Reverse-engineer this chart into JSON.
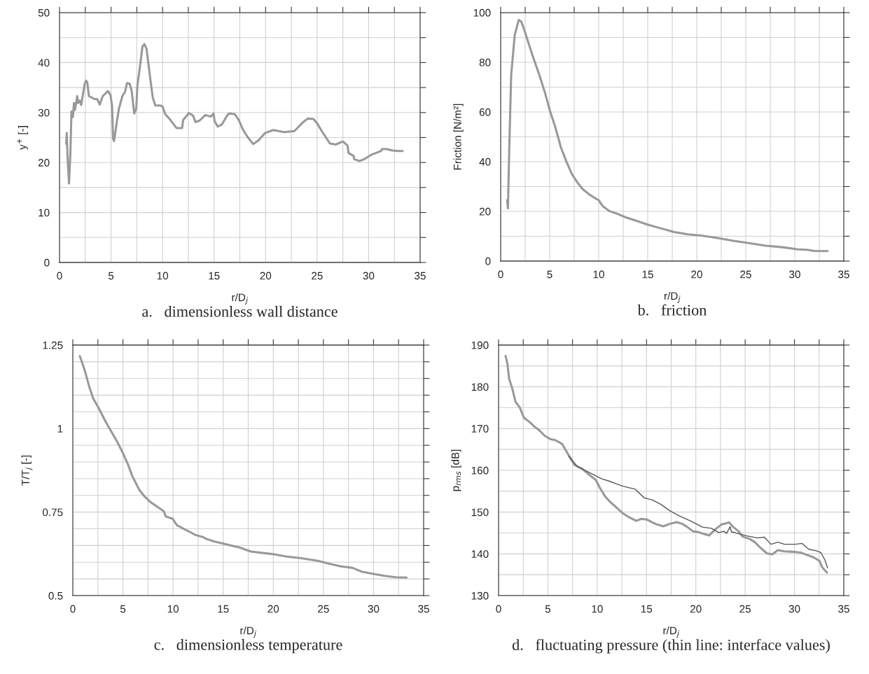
{
  "chart_data": [
    {
      "type": "line",
      "title": "a.   dimensionless wall distance",
      "xlabel": "r/D$_{j}$",
      "ylabel": "y$^{+}$ [-]",
      "xlim": [
        0,
        35
      ],
      "ylim": [
        0,
        50
      ],
      "xticks": [
        0,
        {
          "value": 2.5,
          "label": null
        },
        5,
        {
          "value": 7.5,
          "label": null
        },
        10,
        {
          "value": 12.5,
          "label": null
        },
        15,
        {
          "value": 17.5,
          "label": null
        },
        20,
        {
          "value": 22.5,
          "label": null
        },
        25,
        {
          "value": 27.5,
          "label": null
        },
        30,
        {
          "value": 32.5,
          "label": null
        },
        35
      ],
      "yticks": [
        0,
        {
          "value": 5,
          "label": null
        },
        10,
        {
          "value": 15,
          "label": null
        },
        20,
        {
          "value": 25,
          "label": null
        },
        30,
        {
          "value": 35,
          "label": null
        },
        40,
        {
          "value": 45,
          "label": null
        },
        50
      ],
      "grid": true,
      "series": [
        {
          "color": "#999999",
          "x": [
            0.65,
            0.7,
            0.78,
            0.92,
            1.05,
            1.16,
            1.3,
            1.4,
            1.5,
            1.72,
            1.8,
            1.96,
            2.1,
            2.45,
            2.58,
            2.7,
            2.85,
            3.4,
            3.65,
            3.9,
            4.2,
            4.7,
            4.95,
            5.1,
            5.2,
            5.3,
            5.55,
            5.77,
            6.1,
            6.35,
            6.55,
            6.8,
            7.0,
            7.25,
            7.45,
            7.55,
            7.85,
            8.05,
            8.24,
            8.45,
            8.8,
            9.05,
            9.3,
            9.8,
            10.0,
            10.25,
            10.65,
            11.35,
            11.9,
            12.0,
            12.55,
            12.95,
            13.2,
            13.6,
            14.15,
            14.7,
            14.95,
            15.05,
            15.35,
            15.75,
            16.3,
            16.45,
            17.0,
            17.4,
            17.8,
            18.25,
            18.8,
            19.3,
            19.95,
            20.75,
            21.8,
            22.8,
            23.6,
            24.1,
            24.65,
            25.05,
            25.45,
            26.25,
            26.8,
            27.5,
            27.95,
            28.05,
            28.55,
            28.6,
            29.1,
            29.6,
            30.3,
            30.7,
            31.2,
            31.3,
            31.75,
            32.3,
            32.85,
            33.3
          ],
          "values": [
            23.7,
            25.9,
            21.1,
            15.8,
            21.6,
            30.2,
            29.1,
            31.9,
            30.5,
            33.3,
            31.9,
            32.4,
            31.5,
            35.8,
            36.4,
            36.0,
            33.3,
            32.7,
            32.7,
            31.6,
            33.3,
            34.3,
            33.5,
            31.3,
            24.7,
            24.3,
            28.0,
            30.8,
            33.3,
            34.1,
            35.9,
            35.8,
            34.4,
            29.8,
            30.8,
            35.2,
            39.9,
            43.2,
            43.7,
            42.7,
            36.9,
            33.0,
            31.4,
            31.4,
            31.2,
            29.7,
            28.8,
            26.9,
            26.9,
            28.5,
            29.9,
            29.4,
            28.1,
            28.4,
            29.5,
            29.2,
            29.8,
            28.3,
            27.2,
            27.6,
            29.5,
            29.8,
            29.7,
            28.5,
            26.6,
            25.1,
            23.7,
            24.4,
            25.9,
            26.5,
            26.1,
            26.3,
            28.0,
            28.8,
            28.7,
            27.7,
            26.3,
            23.8,
            23.6,
            24.2,
            23.4,
            21.9,
            21.3,
            20.7,
            20.3,
            20.7,
            21.6,
            21.9,
            22.3,
            22.7,
            22.7,
            22.4,
            22.3,
            22.3
          ]
        }
      ]
    },
    {
      "type": "line",
      "title": "b.   friction",
      "xlabel": "r/D$_{j}$",
      "ylabel": "Friction [N/m²]",
      "xlim": [
        0,
        35
      ],
      "ylim": [
        0,
        100
      ],
      "xticks": [
        0,
        {
          "value": 2.5,
          "label": null
        },
        5,
        {
          "value": 7.5,
          "label": null
        },
        10,
        {
          "value": 12.5,
          "label": null
        },
        15,
        {
          "value": 17.5,
          "label": null
        },
        20,
        {
          "value": 22.5,
          "label": null
        },
        25,
        {
          "value": 27.5,
          "label": null
        },
        30,
        {
          "value": 32.5,
          "label": null
        },
        35
      ],
      "yticks": [
        0,
        {
          "value": 10,
          "label": null
        },
        20,
        {
          "value": 30,
          "label": null
        },
        40,
        {
          "value": 50,
          "label": null
        },
        60,
        {
          "value": 70,
          "label": null
        },
        80,
        {
          "value": 90,
          "label": null
        },
        100
      ],
      "grid": true,
      "series": [
        {
          "color": "#999999",
          "x": [
            0.66,
            0.74,
            0.88,
            1.07,
            1.43,
            1.65,
            1.84,
            2.09,
            2.31,
            2.72,
            3.27,
            3.96,
            4.5,
            5.05,
            5.6,
            6.15,
            6.7,
            7.25,
            7.8,
            8.35,
            9.04,
            9.59,
            10.0,
            10.41,
            11.1,
            11.92,
            12.75,
            13.85,
            14.95,
            16.3,
            17.7,
            19.07,
            20.4,
            22.1,
            23.7,
            25.4,
            27.0,
            28.7,
            30.3,
            31.3,
            31.98,
            33.35
          ],
          "values": [
            24.5,
            21.2,
            45.7,
            74.7,
            90.9,
            94.2,
            97.0,
            96.4,
            94.2,
            89.2,
            82.5,
            74.7,
            68.0,
            60.2,
            53.5,
            45.7,
            40.1,
            35.1,
            31.8,
            29.0,
            26.8,
            25.4,
            24.5,
            22.1,
            20.1,
            19.0,
            17.6,
            16.2,
            14.7,
            13.2,
            11.7,
            10.8,
            10.3,
            9.3,
            8.2,
            7.2,
            6.2,
            5.6,
            4.7,
            4.5,
            4.1,
            4.0
          ]
        }
      ]
    },
    {
      "type": "line",
      "title": "c.   dimensionless temperature",
      "xlabel": "r/D$_{j}$",
      "ylabel": "T/T$_{j}$ [-]",
      "xlim": [
        0,
        35
      ],
      "ylim": [
        0.5,
        1.25
      ],
      "xticks": [
        0,
        {
          "value": 2.5,
          "label": null
        },
        5,
        {
          "value": 7.5,
          "label": null
        },
        10,
        {
          "value": 12.5,
          "label": null
        },
        15,
        {
          "value": 17.5,
          "label": null
        },
        20,
        {
          "value": 22.5,
          "label": null
        },
        25,
        {
          "value": 27.5,
          "label": null
        },
        30,
        {
          "value": 32.5,
          "label": null
        },
        35
      ],
      "yticks": [
        0.5,
        {
          "value": 0.55,
          "label": null
        },
        {
          "value": 0.6,
          "label": null
        },
        {
          "value": 0.65,
          "label": null
        },
        {
          "value": 0.7,
          "label": null
        },
        0.75,
        {
          "value": 0.8,
          "label": null
        },
        {
          "value": 0.85,
          "label": null
        },
        {
          "value": 0.9,
          "label": null
        },
        {
          "value": 0.95,
          "label": null
        },
        1,
        {
          "value": 1.05,
          "label": null
        },
        {
          "value": 1.1,
          "label": null
        },
        {
          "value": 1.15,
          "label": null
        },
        {
          "value": 1.2,
          "label": null
        },
        1.25
      ],
      "grid": true,
      "series": [
        {
          "color": "#999999",
          "x": [
            0.7,
            0.83,
            1.2,
            1.62,
            2.03,
            2.59,
            3.28,
            3.84,
            4.4,
            4.96,
            5.51,
            5.93,
            6.62,
            7.18,
            7.74,
            8.15,
            8.57,
            9.07,
            9.27,
            9.96,
            10.38,
            11.07,
            11.91,
            12.19,
            13.02,
            13.3,
            14.13,
            14.97,
            15.8,
            16.64,
            17.75,
            19.14,
            19.98,
            21.37,
            22.76,
            24.43,
            25.54,
            26.66,
            27.91,
            28.88,
            30.0,
            31.1,
            32.2,
            33.3
          ],
          "values": [
            1.217,
            1.206,
            1.173,
            1.127,
            1.09,
            1.061,
            1.02,
            0.991,
            0.962,
            0.929,
            0.892,
            0.858,
            0.817,
            0.796,
            0.78,
            0.772,
            0.763,
            0.753,
            0.737,
            0.73,
            0.711,
            0.7,
            0.687,
            0.682,
            0.675,
            0.67,
            0.662,
            0.656,
            0.65,
            0.644,
            0.632,
            0.627,
            0.624,
            0.617,
            0.612,
            0.604,
            0.596,
            0.588,
            0.583,
            0.571,
            0.565,
            0.559,
            0.555,
            0.554
          ]
        }
      ]
    },
    {
      "type": "line",
      "title": "d.   fluctuating pressure (thin line: interface values)",
      "xlabel": "r/D$_{j}$",
      "ylabel": "p$_{rms}$ [dB]",
      "xlim": [
        0,
        35
      ],
      "ylim": [
        130,
        190
      ],
      "xticks": [
        0,
        {
          "value": 2.5,
          "label": null
        },
        5,
        {
          "value": 7.5,
          "label": null
        },
        10,
        {
          "value": 12.5,
          "label": null
        },
        15,
        {
          "value": 17.5,
          "label": null
        },
        20,
        {
          "value": 22.5,
          "label": null
        },
        25,
        {
          "value": 27.5,
          "label": null
        },
        30,
        {
          "value": 32.5,
          "label": null
        },
        35
      ],
      "yticks": [
        130,
        {
          "value": 135,
          "label": null
        },
        140,
        {
          "value": 145,
          "label": null
        },
        150,
        {
          "value": 155,
          "label": null
        },
        160,
        {
          "value": 165,
          "label": null
        },
        170,
        {
          "value": 175,
          "label": null
        },
        180,
        {
          "value": 185,
          "label": null
        },
        190
      ],
      "grid": true,
      "series": [
        {
          "color": "#999999",
          "x": [
            0.71,
            0.9,
            1.07,
            1.39,
            1.72,
            2.16,
            2.57,
            3.17,
            3.72,
            4.13,
            4.67,
            5.22,
            5.77,
            6.45,
            6.86,
            7.27,
            7.68,
            8.5,
            9.32,
            9.86,
            10.27,
            10.82,
            11.37,
            11.91,
            12.6,
            13.28,
            13.96,
            14.5,
            15.05,
            15.87,
            16.69,
            17.38,
            18.06,
            18.61,
            19.15,
            19.7,
            20.25,
            20.79,
            21.34,
            21.89,
            22.57,
            23.39,
            23.8,
            24.34,
            24.75,
            25.44,
            25.98,
            26.53,
            27.21,
            27.76,
            28.31,
            28.99,
            29.81,
            30.63,
            31.31,
            32.0,
            32.54,
            32.81,
            33.3
          ],
          "values": [
            187.4,
            185.5,
            181.9,
            179.6,
            176.4,
            175.0,
            172.6,
            171.5,
            170.3,
            169.6,
            168.3,
            167.5,
            167.2,
            166.3,
            164.6,
            163.0,
            161.3,
            160.3,
            158.7,
            157.7,
            155.8,
            153.7,
            152.3,
            151.2,
            149.7,
            148.7,
            147.9,
            148.4,
            148.2,
            147.2,
            146.6,
            147.2,
            147.6,
            147.2,
            146.4,
            145.4,
            145.2,
            144.8,
            144.4,
            145.7,
            147.0,
            147.5,
            146.4,
            145.4,
            144.1,
            143.6,
            142.8,
            141.5,
            140.1,
            139.9,
            140.9,
            140.6,
            140.5,
            140.3,
            139.7,
            139.1,
            138.3,
            136.8,
            135.5
          ]
        },
        {
          "color": "#555555",
          "x": [
            7.13,
            7.95,
            8.77,
            9.59,
            10.41,
            11.23,
            11.91,
            12.6,
            13.83,
            14.78,
            15.6,
            16.42,
            17.38,
            18.33,
            19.43,
            20.66,
            21.61,
            22.3,
            22.84,
            23.12,
            23.47,
            23.61,
            24.34,
            25.16,
            26.25,
            26.94,
            27.62,
            28.31,
            28.99,
            30.08,
            30.77,
            31.45,
            32.27,
            32.68,
            33.09,
            33.36
          ],
          "values": [
            163.3,
            161.0,
            160.0,
            159.0,
            158.0,
            157.4,
            156.8,
            156.2,
            155.5,
            153.4,
            152.9,
            151.9,
            150.3,
            149.1,
            147.9,
            146.4,
            146.1,
            145.1,
            145.4,
            144.9,
            146.5,
            145.3,
            144.8,
            144.3,
            143.8,
            144.0,
            142.3,
            142.8,
            142.3,
            142.3,
            142.5,
            141.1,
            140.7,
            140.3,
            138.5,
            136.6
          ]
        }
      ]
    }
  ]
}
